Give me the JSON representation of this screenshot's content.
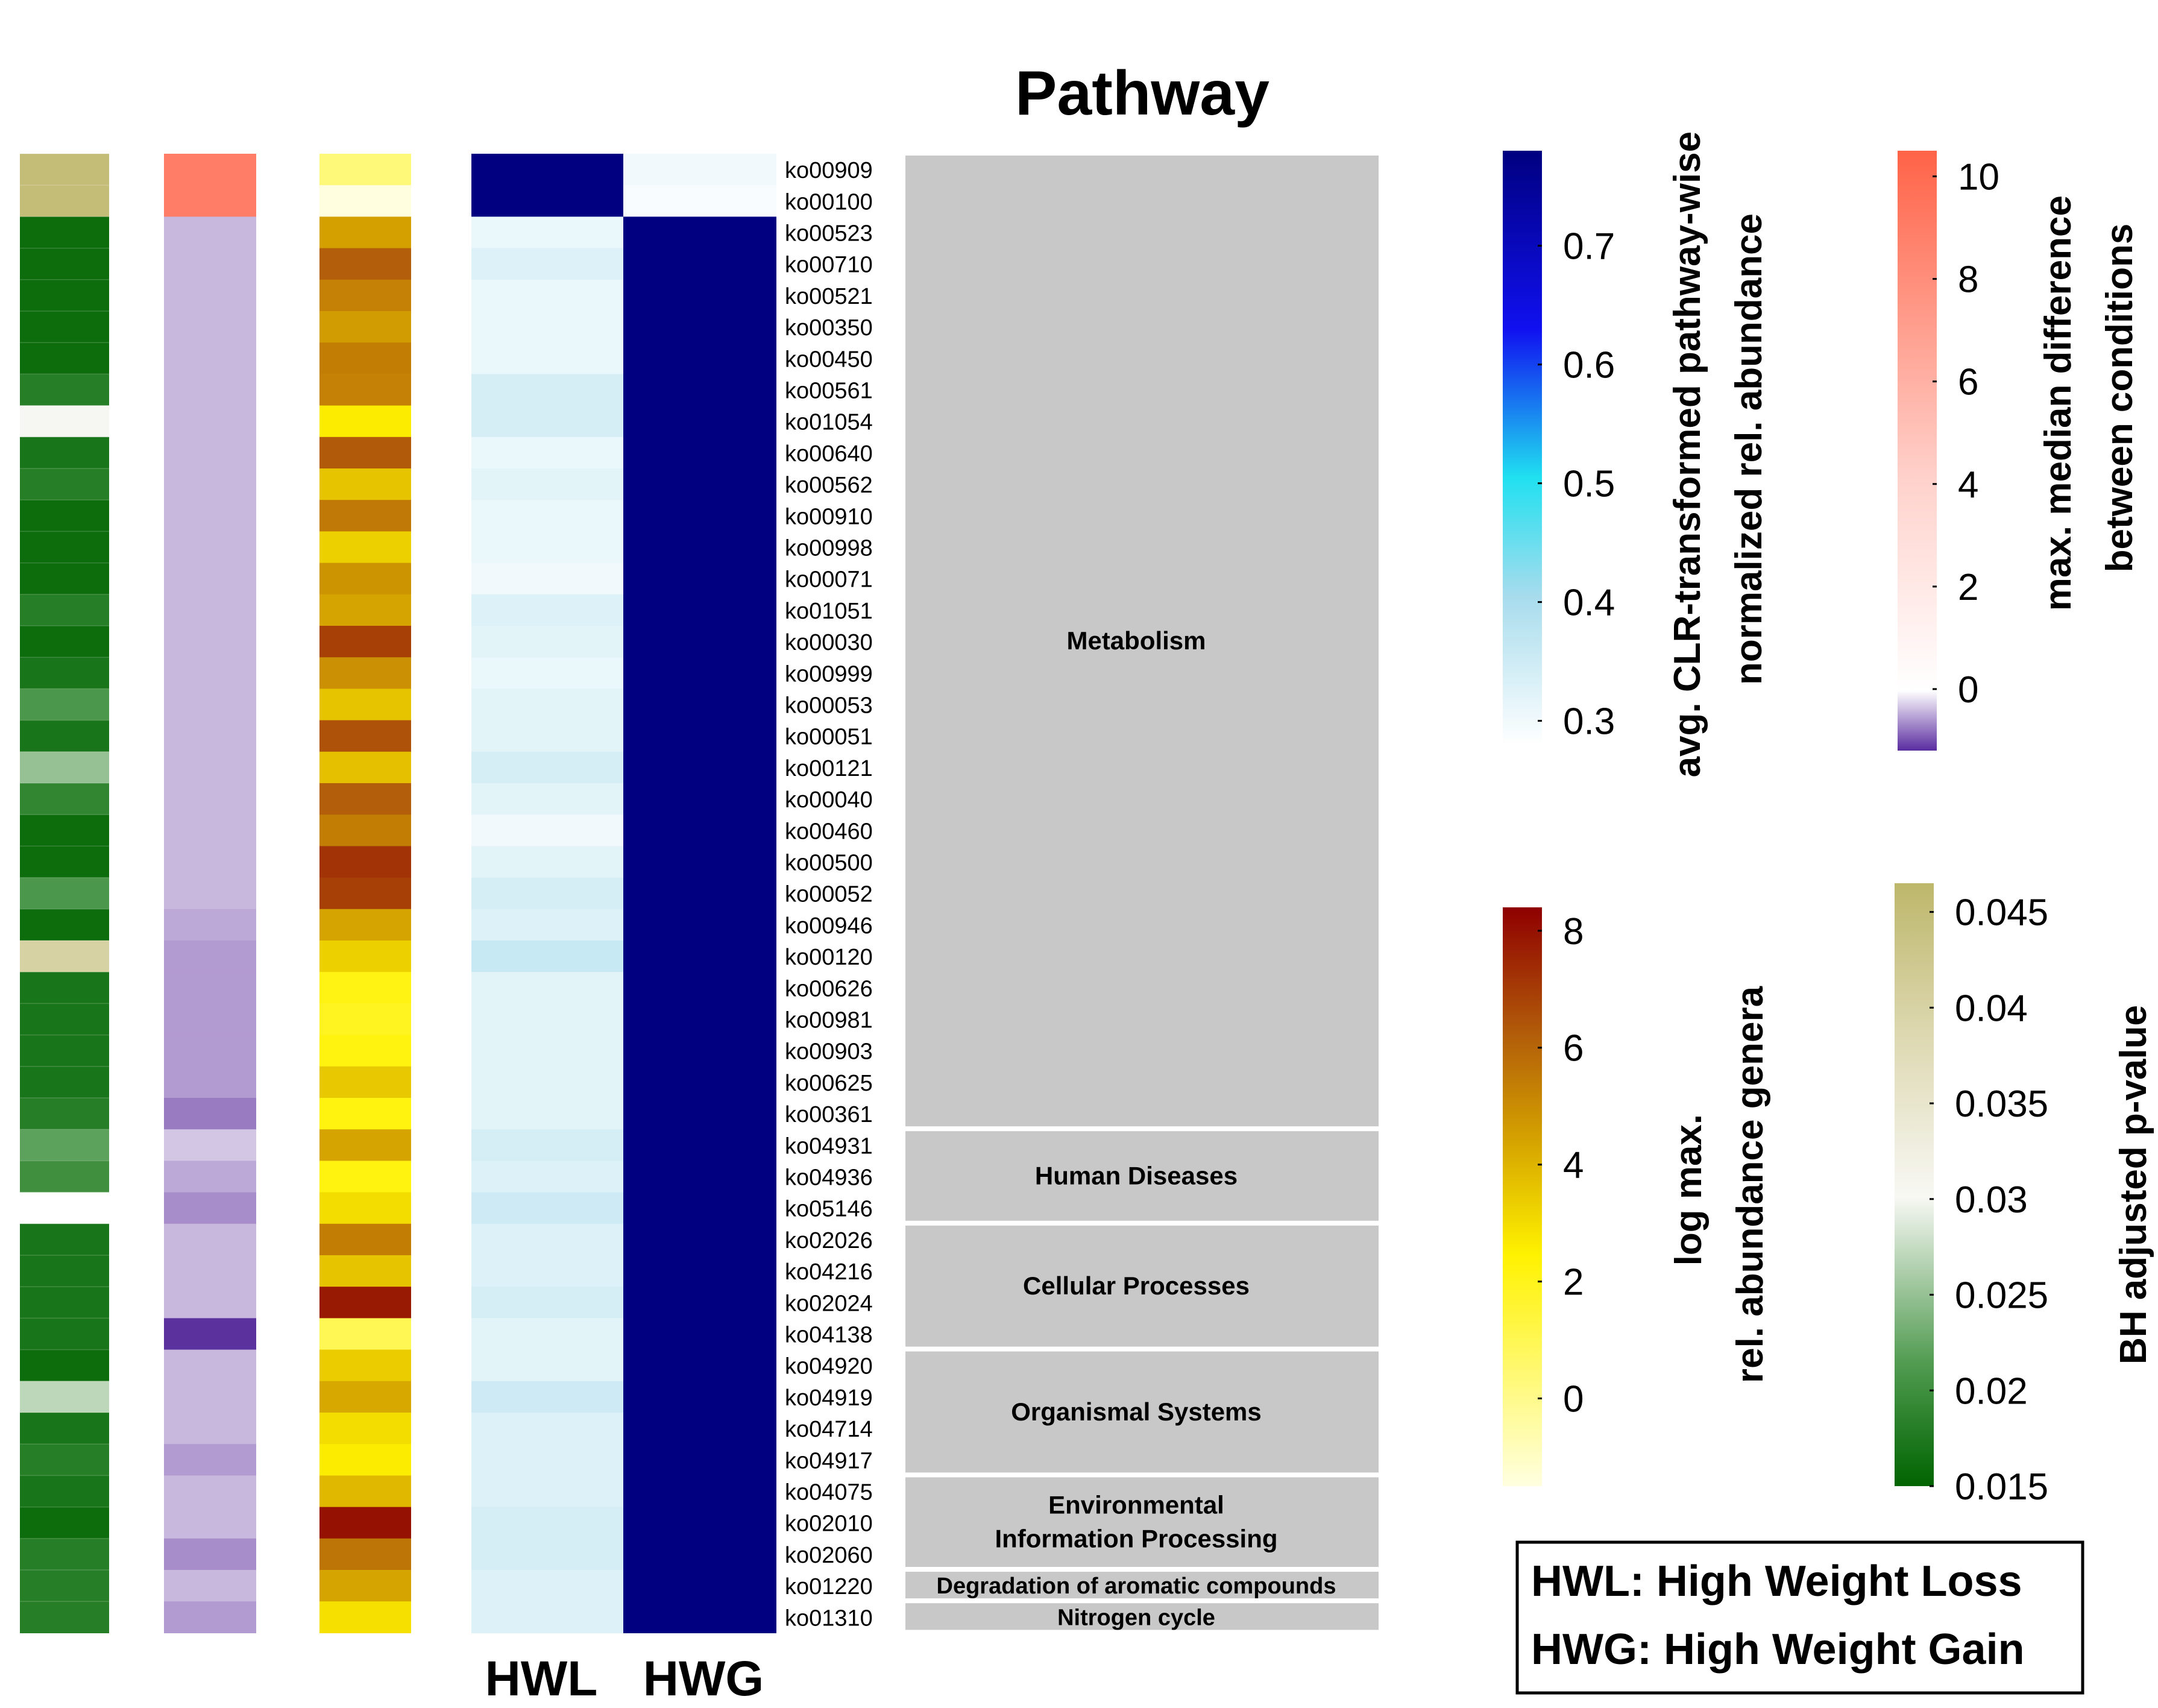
{
  "chart_data": {
    "type": "heatmap",
    "title": "Pathway",
    "columns": [
      "HWL",
      "HWG"
    ],
    "rows": [
      "ko00909",
      "ko00100",
      "ko00523",
      "ko00710",
      "ko00521",
      "ko00350",
      "ko00450",
      "ko00561",
      "ko01054",
      "ko00640",
      "ko00562",
      "ko00910",
      "ko00998",
      "ko00071",
      "ko01051",
      "ko00030",
      "ko00999",
      "ko00053",
      "ko00051",
      "ko00121",
      "ko00040",
      "ko00460",
      "ko00500",
      "ko00052",
      "ko00946",
      "ko00120",
      "ko00626",
      "ko00981",
      "ko00903",
      "ko00625",
      "ko00361",
      "ko04931",
      "ko04936",
      "ko05146",
      "ko02026",
      "ko04216",
      "ko02024",
      "ko04138",
      "ko04920",
      "ko04919",
      "ko04714",
      "ko04917",
      "ko04075",
      "ko02010",
      "ko02060",
      "ko01220",
      "ko01310"
    ],
    "hwl": [
      0.78,
      0.78,
      0.31,
      0.33,
      0.31,
      0.31,
      0.31,
      0.34,
      0.34,
      0.31,
      0.32,
      0.31,
      0.31,
      0.3,
      0.33,
      0.32,
      0.31,
      0.32,
      0.32,
      0.34,
      0.32,
      0.3,
      0.32,
      0.34,
      0.33,
      0.36,
      0.32,
      0.32,
      0.32,
      0.32,
      0.32,
      0.34,
      0.33,
      0.35,
      0.33,
      0.33,
      0.34,
      0.32,
      0.32,
      0.35,
      0.33,
      0.33,
      0.33,
      0.34,
      0.34,
      0.33,
      0.33
    ],
    "hwg": [
      0.3,
      0.29,
      0.78,
      0.78,
      0.78,
      0.78,
      0.78,
      0.78,
      0.78,
      0.78,
      0.78,
      0.78,
      0.78,
      0.78,
      0.78,
      0.78,
      0.78,
      0.78,
      0.78,
      0.78,
      0.78,
      0.78,
      0.78,
      0.78,
      0.78,
      0.78,
      0.78,
      0.78,
      0.78,
      0.78,
      0.78,
      0.78,
      0.78,
      0.78,
      0.78,
      0.78,
      0.78,
      0.78,
      0.78,
      0.78,
      0.78,
      0.78,
      0.78,
      0.78,
      0.78,
      0.78,
      0.78
    ],
    "bh_pvalue": [
      0.045,
      0.045,
      0.016,
      0.016,
      0.016,
      0.016,
      0.016,
      0.018,
      0.03,
      0.017,
      0.018,
      0.016,
      0.016,
      0.016,
      0.018,
      0.016,
      0.017,
      0.021,
      0.017,
      0.025,
      0.019,
      0.016,
      0.016,
      0.021,
      0.016,
      0.04,
      0.017,
      0.017,
      0.017,
      0.017,
      0.018,
      0.022,
      0.02,
      null,
      0.017,
      0.017,
      0.017,
      0.017,
      0.016,
      0.027,
      0.017,
      0.018,
      0.017,
      0.016,
      0.018,
      0.018,
      0.018
    ],
    "max_median_diff": [
      9,
      9,
      -0.3,
      -0.3,
      -0.3,
      -0.3,
      -0.3,
      -0.3,
      -0.3,
      -0.3,
      -0.3,
      -0.3,
      -0.3,
      -0.3,
      -0.3,
      -0.3,
      -0.3,
      -0.3,
      -0.3,
      -0.3,
      -0.3,
      -0.3,
      -0.3,
      -0.3,
      -0.4,
      -0.5,
      -0.5,
      -0.5,
      -0.5,
      -0.5,
      -0.7,
      -0.2,
      -0.4,
      -0.6,
      -0.3,
      -0.3,
      -0.3,
      -1.1,
      -0.3,
      -0.3,
      -0.3,
      -0.5,
      -0.3,
      -0.3,
      -0.6,
      -0.3,
      -0.5
    ],
    "log_max_abundance": [
      0.3,
      -1.5,
      4.5,
      6.2,
      5.3,
      4.6,
      5.4,
      5.3,
      2.6,
      6.3,
      3.6,
      5.5,
      3.3,
      4.8,
      4.4,
      6.9,
      4.9,
      3.6,
      6.5,
      3.7,
      6.2,
      5.4,
      7.2,
      6.9,
      4.4,
      3.3,
      2.1,
      1.9,
      2.2,
      3.5,
      2.2,
      4.4,
      2.2,
      3.0,
      5.4,
      3.6,
      7.8,
      1.0,
      3.4,
      4.3,
      3.0,
      2.6,
      3.9,
      8.0,
      5.6,
      4.4,
      2.9
    ],
    "pathway_groups": [
      {
        "name": "Metabolism",
        "lines": [
          "Metabolism"
        ],
        "start": 0,
        "end": 30
      },
      {
        "name": "Human Diseases",
        "lines": [
          "Human Diseases"
        ],
        "start": 31,
        "end": 33
      },
      {
        "name": "Cellular Processes",
        "lines": [
          "Cellular Processes"
        ],
        "start": 34,
        "end": 37
      },
      {
        "name": "Organismal Systems",
        "lines": [
          "Organismal Systems"
        ],
        "start": 38,
        "end": 41
      },
      {
        "name": "Environmental Information Processing",
        "lines": [
          "Environmental",
          "Information Processing"
        ],
        "start": 42,
        "end": 44
      },
      {
        "name": "Degradation of aromatic compounds",
        "lines": [
          "Degradation of aromatic compounds"
        ],
        "start": 45,
        "end": 45
      },
      {
        "name": "Nitrogen cycle",
        "lines": [
          "Nitrogen cycle"
        ],
        "start": 46,
        "end": 46
      }
    ],
    "legends": {
      "clr": {
        "title_lines": [
          "avg. CLR-transformed pathway-wise",
          "normalized rel. abundance"
        ],
        "ticks": [
          "0.7",
          "0.6",
          "0.5",
          "0.4",
          "0.3"
        ],
        "tick_values": [
          0.7,
          0.6,
          0.5,
          0.4,
          0.3
        ],
        "range": [
          0.28,
          0.78
        ]
      },
      "median_diff": {
        "title_lines": [
          "max. median difference",
          "between conditions"
        ],
        "ticks": [
          "10",
          "8",
          "6",
          "4",
          "2",
          "0"
        ],
        "tick_values": [
          10,
          8,
          6,
          4,
          2,
          0
        ],
        "range": [
          -1.2,
          10.5
        ]
      },
      "abundance": {
        "title_lines": [
          "log max.",
          "rel. abundance genera"
        ],
        "ticks": [
          "8",
          "6",
          "4",
          "2",
          "0"
        ],
        "tick_values": [
          8,
          6,
          4,
          2,
          0
        ],
        "range": [
          -1.5,
          8.4
        ]
      },
      "pvalue": {
        "title_lines": [
          "BH adjusted p-value"
        ],
        "ticks": [
          "0.045",
          "0.04",
          "0.035",
          "0.03",
          "0.025",
          "0.02",
          "0.015"
        ],
        "tick_values": [
          0.045,
          0.04,
          0.035,
          0.03,
          0.025,
          0.02,
          0.015
        ],
        "range": [
          0.015,
          0.0465
        ]
      }
    },
    "key_lines": [
      "HWL: High Weight Loss",
      "HWG: High Weight Gain"
    ]
  },
  "colors": {
    "navy": "#000080",
    "heat_low": "#ffffe0",
    "heat_yellow": "#fff200",
    "heat_orange": "#d4a200",
    "heat_brown": "#b25d0a",
    "heat_dark": "#8f0000",
    "p_green_dark": "#006400",
    "p_white": "#f5f5f0",
    "p_olive": "#bdb76b",
    "salmon": "#ff6347",
    "purple_light": "#a58bc9",
    "purple_dark": "#4b1f94",
    "group_bg": "#c8c8c8"
  }
}
